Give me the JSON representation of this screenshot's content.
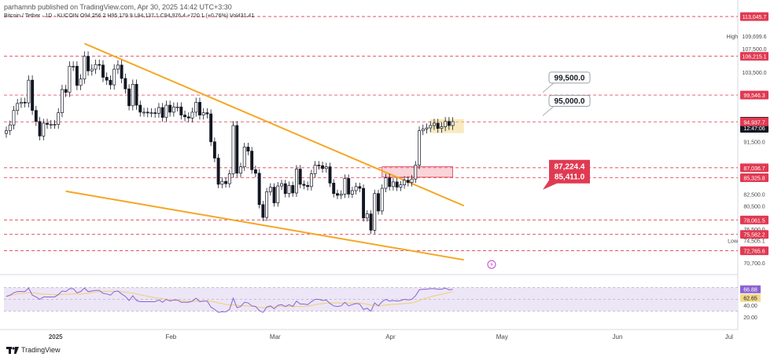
{
  "header": {
    "published": "parhamnb published on TradingView.com, Apr 30, 2025 14:42 UTC+3:30",
    "symbol_line": "Bitcoin / Tether · 1D · KUCOIN  O94,256.2  H95,179.9  L94,137.1  C94,976.4  +720.1 (+0.76%)  Vol431.41"
  },
  "footer": {
    "brand": "TradingView"
  },
  "colors": {
    "up": "#ffffff",
    "down": "#131722",
    "wick": "#131722",
    "trendline": "#f5a623",
    "level_line": "#e03a52",
    "rsi_line": "#8a63d2",
    "rsi_ma": "#f0d286",
    "rsi_band": "#ece6f7",
    "tag_red": "#e03a52",
    "tag_dark": "#131722",
    "tag_yellow": "#f3d98c",
    "callout_red": "#e03a52",
    "callout_box": "#f2a0aa"
  },
  "chart_data": {
    "type": "candlestick",
    "symbol": "Bitcoin / Tether",
    "interval": "1D",
    "exchange": "KUCOIN",
    "ylim": [
      69200,
      114000
    ],
    "y_ticks": [
      113045.7,
      109699.6,
      107500.0,
      106215.1,
      103500.0,
      99546.3,
      94976.4,
      94937.7,
      91500.0,
      87036.7,
      85325.8,
      82500.0,
      80500.0,
      78061.5,
      76500.0,
      75582.2,
      74505.1,
      72765.6,
      70700.0
    ],
    "x_ticks": [
      "2025",
      "Feb",
      "Mar",
      "Apr",
      "May",
      "Jun",
      "Jul"
    ],
    "price_tags": [
      {
        "value": 113045.7,
        "label": "113,045.7",
        "style": "red"
      },
      {
        "value": 109699.6,
        "label": "109,699.6",
        "style": "plain",
        "prefix": "High"
      },
      {
        "value": 107500.0,
        "label": "107,500.0",
        "style": "plain"
      },
      {
        "value": 106215.1,
        "label": "106,215.1",
        "style": "red"
      },
      {
        "value": 103500.0,
        "label": "103,500.0",
        "style": "plain"
      },
      {
        "value": 99546.3,
        "label": "99,546.3",
        "style": "red"
      },
      {
        "value": 94976.4,
        "label": "94,976.4",
        "style": "dark",
        "sub": "12:47:06"
      },
      {
        "value": 94937.7,
        "label": "94,937.7",
        "style": "red"
      },
      {
        "value": 91500.0,
        "label": "91,500.0",
        "style": "plain"
      },
      {
        "value": 87036.7,
        "label": "87,036.7",
        "style": "red"
      },
      {
        "value": 85325.8,
        "label": "85,325.8",
        "style": "red"
      },
      {
        "value": 82500.0,
        "label": "82,500.0",
        "style": "plain"
      },
      {
        "value": 80500.0,
        "label": "80,500.0",
        "style": "plain"
      },
      {
        "value": 78061.5,
        "label": "78,061.5",
        "style": "red"
      },
      {
        "value": 76500.0,
        "label": "76,500.0",
        "style": "plain"
      },
      {
        "value": 75582.2,
        "label": "75,582.2",
        "style": "red"
      },
      {
        "value": 74505.1,
        "label": "74,505.1",
        "style": "plain",
        "prefix": "Low"
      },
      {
        "value": 72765.6,
        "label": "72,765.6",
        "style": "red"
      },
      {
        "value": 70700.0,
        "label": "70,700.0",
        "style": "plain"
      }
    ],
    "horizontal_levels": [
      113045.7,
      106215.1,
      99546.3,
      94937.7,
      87036.7,
      85325.8,
      78061.5,
      75582.2,
      72765.6
    ],
    "annotations": [
      {
        "text": "99,500.0",
        "style": "callout"
      },
      {
        "text": "95,000.0",
        "style": "callout"
      },
      {
        "text": "87,224.4",
        "style": "red-callout"
      },
      {
        "text": "85,411.0",
        "style": "red-callout"
      }
    ],
    "zones": [
      {
        "name": "resistance-box",
        "y_range": [
          85411.0,
          87224.4
        ],
        "color": "#f2a0aa"
      },
      {
        "name": "current-box",
        "y_range": [
          93000,
          95400
        ],
        "color": "#f3d98c"
      }
    ],
    "trendlines": [
      {
        "name": "upper-wedge",
        "from": {
          "date": "2025-01-21",
          "price": 108400
        },
        "to": {
          "date": "2025-05-03",
          "price": 80500
        }
      },
      {
        "name": "lower-wedge",
        "from": {
          "date": "2025-01-16",
          "price": 83000
        },
        "to": {
          "date": "2025-05-03",
          "price": 71200
        }
      }
    ],
    "x_dates": [
      "2024-12-31",
      "2025-01-01",
      "2025-01-02",
      "2025-01-03",
      "2025-01-04",
      "2025-01-05",
      "2025-01-06",
      "2025-01-07",
      "2025-01-08",
      "2025-01-09",
      "2025-01-10",
      "2025-01-11",
      "2025-01-12",
      "2025-01-13",
      "2025-01-14",
      "2025-01-15",
      "2025-01-16",
      "2025-01-17",
      "2025-01-18",
      "2025-01-19",
      "2025-01-20",
      "2025-01-21",
      "2025-01-22",
      "2025-01-23",
      "2025-01-24",
      "2025-01-25",
      "2025-01-26",
      "2025-01-27",
      "2025-01-28",
      "2025-01-29",
      "2025-01-30",
      "2025-01-31",
      "2025-02-01",
      "2025-02-02",
      "2025-02-03",
      "2025-02-04",
      "2025-02-05",
      "2025-02-06",
      "2025-02-07",
      "2025-02-08",
      "2025-02-09",
      "2025-02-10",
      "2025-02-11",
      "2025-02-12",
      "2025-02-13",
      "2025-02-14",
      "2025-02-15",
      "2025-02-16",
      "2025-02-17",
      "2025-02-18",
      "2025-02-19",
      "2025-02-20",
      "2025-02-21",
      "2025-02-22",
      "2025-02-23",
      "2025-02-24",
      "2025-02-25",
      "2025-02-26",
      "2025-02-27",
      "2025-02-28",
      "2025-03-01",
      "2025-03-02",
      "2025-03-03",
      "2025-03-04",
      "2025-03-05",
      "2025-03-06",
      "2025-03-07",
      "2025-03-08",
      "2025-03-09",
      "2025-03-10",
      "2025-03-11",
      "2025-03-12",
      "2025-03-13",
      "2025-03-14",
      "2025-03-15",
      "2025-03-16",
      "2025-03-17",
      "2025-03-18",
      "2025-03-19",
      "2025-03-20",
      "2025-03-21",
      "2025-03-22",
      "2025-03-23",
      "2025-03-24",
      "2025-03-25",
      "2025-03-26",
      "2025-03-27",
      "2025-03-28",
      "2025-03-29",
      "2025-03-30",
      "2025-03-31",
      "2025-04-01",
      "2025-04-02",
      "2025-04-03",
      "2025-04-04",
      "2025-04-05",
      "2025-04-06",
      "2025-04-07",
      "2025-04-08",
      "2025-04-09",
      "2025-04-10",
      "2025-04-11",
      "2025-04-12",
      "2025-04-13",
      "2025-04-14",
      "2025-04-15",
      "2025-04-16",
      "2025-04-17",
      "2025-04-18",
      "2025-04-19",
      "2025-04-20",
      "2025-04-21",
      "2025-04-22",
      "2025-04-23",
      "2025-04-24",
      "2025-04-25",
      "2025-04-26",
      "2025-04-27",
      "2025-04-28",
      "2025-04-29",
      "2025-04-30"
    ],
    "closes": [
      93400,
      94400,
      96900,
      98100,
      98300,
      98200,
      102100,
      96900,
      95000,
      92500,
      94700,
      94500,
      94500,
      94500,
      96500,
      100500,
      100000,
      104500,
      104500,
      101200,
      102300,
      106200,
      103700,
      104000,
      104800,
      104700,
      102600,
      102100,
      101300,
      104000,
      104700,
      102400,
      100600,
      97700,
      101400,
      97800,
      96600,
      96600,
      96500,
      96500,
      96400,
      97400,
      95700,
      97800,
      96600,
      97500,
      97500,
      96100,
      95800,
      95600,
      96600,
      98300,
      96100,
      96500,
      96300,
      91500,
      88700,
      84200,
      84700,
      84300,
      86000,
      94300,
      86100,
      87200,
      90600,
      89900,
      86700,
      86100,
      80700,
      78500,
      82900,
      83700,
      81000,
      83900,
      84300,
      82600,
      84000,
      82700,
      86800,
      84200,
      84000,
      83800,
      86000,
      87500,
      87400,
      86900,
      87200,
      84400,
      82600,
      82300,
      82500,
      85200,
      82500,
      83100,
      83800,
      83500,
      78400,
      79100,
      76300,
      82600,
      79600,
      83500,
      85300,
      83800,
      84600,
      83700,
      84100,
      84900,
      84500,
      85100,
      87500,
      93400,
      93700,
      93900,
      94300,
      94700,
      93800,
      94100,
      95000,
      94300,
      94976.4
    ],
    "rsi": {
      "label_value": "66.88",
      "ma_label_value": "62.65",
      "levels": [
        70,
        50,
        30
      ],
      "ticks": [
        40,
        20
      ],
      "ylim": [
        15,
        85
      ],
      "series": [
        55,
        57,
        61,
        63,
        63,
        63,
        69,
        57,
        54,
        50,
        54,
        54,
        54,
        54,
        58,
        64,
        63,
        68,
        68,
        61,
        63,
        69,
        63,
        64,
        65,
        65,
        60,
        59,
        57,
        63,
        64,
        59,
        55,
        48,
        56,
        48,
        46,
        46,
        46,
        46,
        46,
        49,
        45,
        50,
        47,
        49,
        49,
        45,
        45,
        45,
        47,
        52,
        46,
        47,
        47,
        37,
        33,
        28,
        29,
        29,
        33,
        52,
        36,
        38,
        45,
        44,
        39,
        38,
        31,
        28,
        37,
        39,
        34,
        40,
        41,
        38,
        41,
        38,
        47,
        42,
        42,
        41,
        46,
        50,
        50,
        48,
        49,
        43,
        39,
        38,
        39,
        45,
        39,
        41,
        43,
        42,
        33,
        35,
        30,
        44,
        39,
        46,
        50,
        47,
        48,
        47,
        48,
        50,
        49,
        50,
        56,
        66,
        67,
        67,
        68,
        68,
        67,
        67,
        69,
        66,
        66.88
      ]
    }
  }
}
